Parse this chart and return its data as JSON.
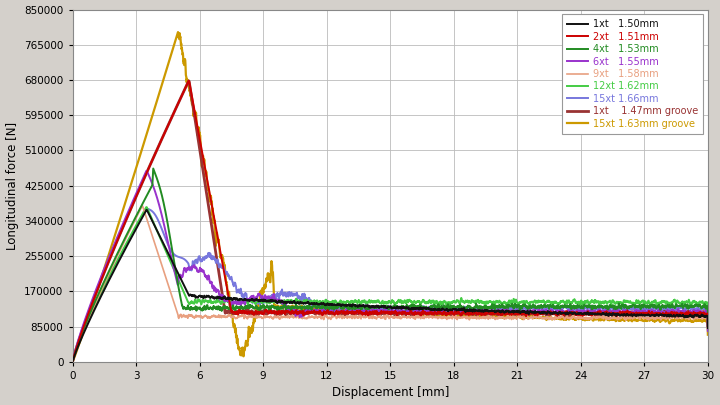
{
  "xlabel": "Displacement [mm]",
  "ylabel": "Longitudinal force [N]",
  "xlim": [
    0,
    30
  ],
  "ylim": [
    0,
    850000
  ],
  "yticks": [
    0,
    85000,
    170000,
    255000,
    340000,
    425000,
    510000,
    595000,
    680000,
    765000,
    850000
  ],
  "xticks": [
    0,
    3,
    6,
    9,
    12,
    15,
    18,
    21,
    24,
    27,
    30
  ],
  "background_color": "#d4d0cb",
  "plot_bg_color": "#ffffff",
  "grid_color": "#bbbbbb",
  "series": [
    {
      "label": "1xt   1.50mm",
      "color": "#111111",
      "lw": 1.4
    },
    {
      "label": "2xt   1.51mm",
      "color": "#cc0000",
      "lw": 1.4
    },
    {
      "label": "4xt   1.53mm",
      "color": "#228B22",
      "lw": 1.4
    },
    {
      "label": "6xt   1.55mm",
      "color": "#9932CC",
      "lw": 1.4
    },
    {
      "label": "9xt   1.58mm",
      "color": "#E8A080",
      "lw": 1.2
    },
    {
      "label": "12xt 1.62mm",
      "color": "#44CC44",
      "lw": 1.4
    },
    {
      "label": "15xt 1.66mm",
      "color": "#7777dd",
      "lw": 1.4
    },
    {
      "label": "1xt    1.47mm groove",
      "color": "#993333",
      "lw": 2.0
    },
    {
      "label": "15xt 1.63mm groove",
      "color": "#CC9900",
      "lw": 1.6
    }
  ]
}
